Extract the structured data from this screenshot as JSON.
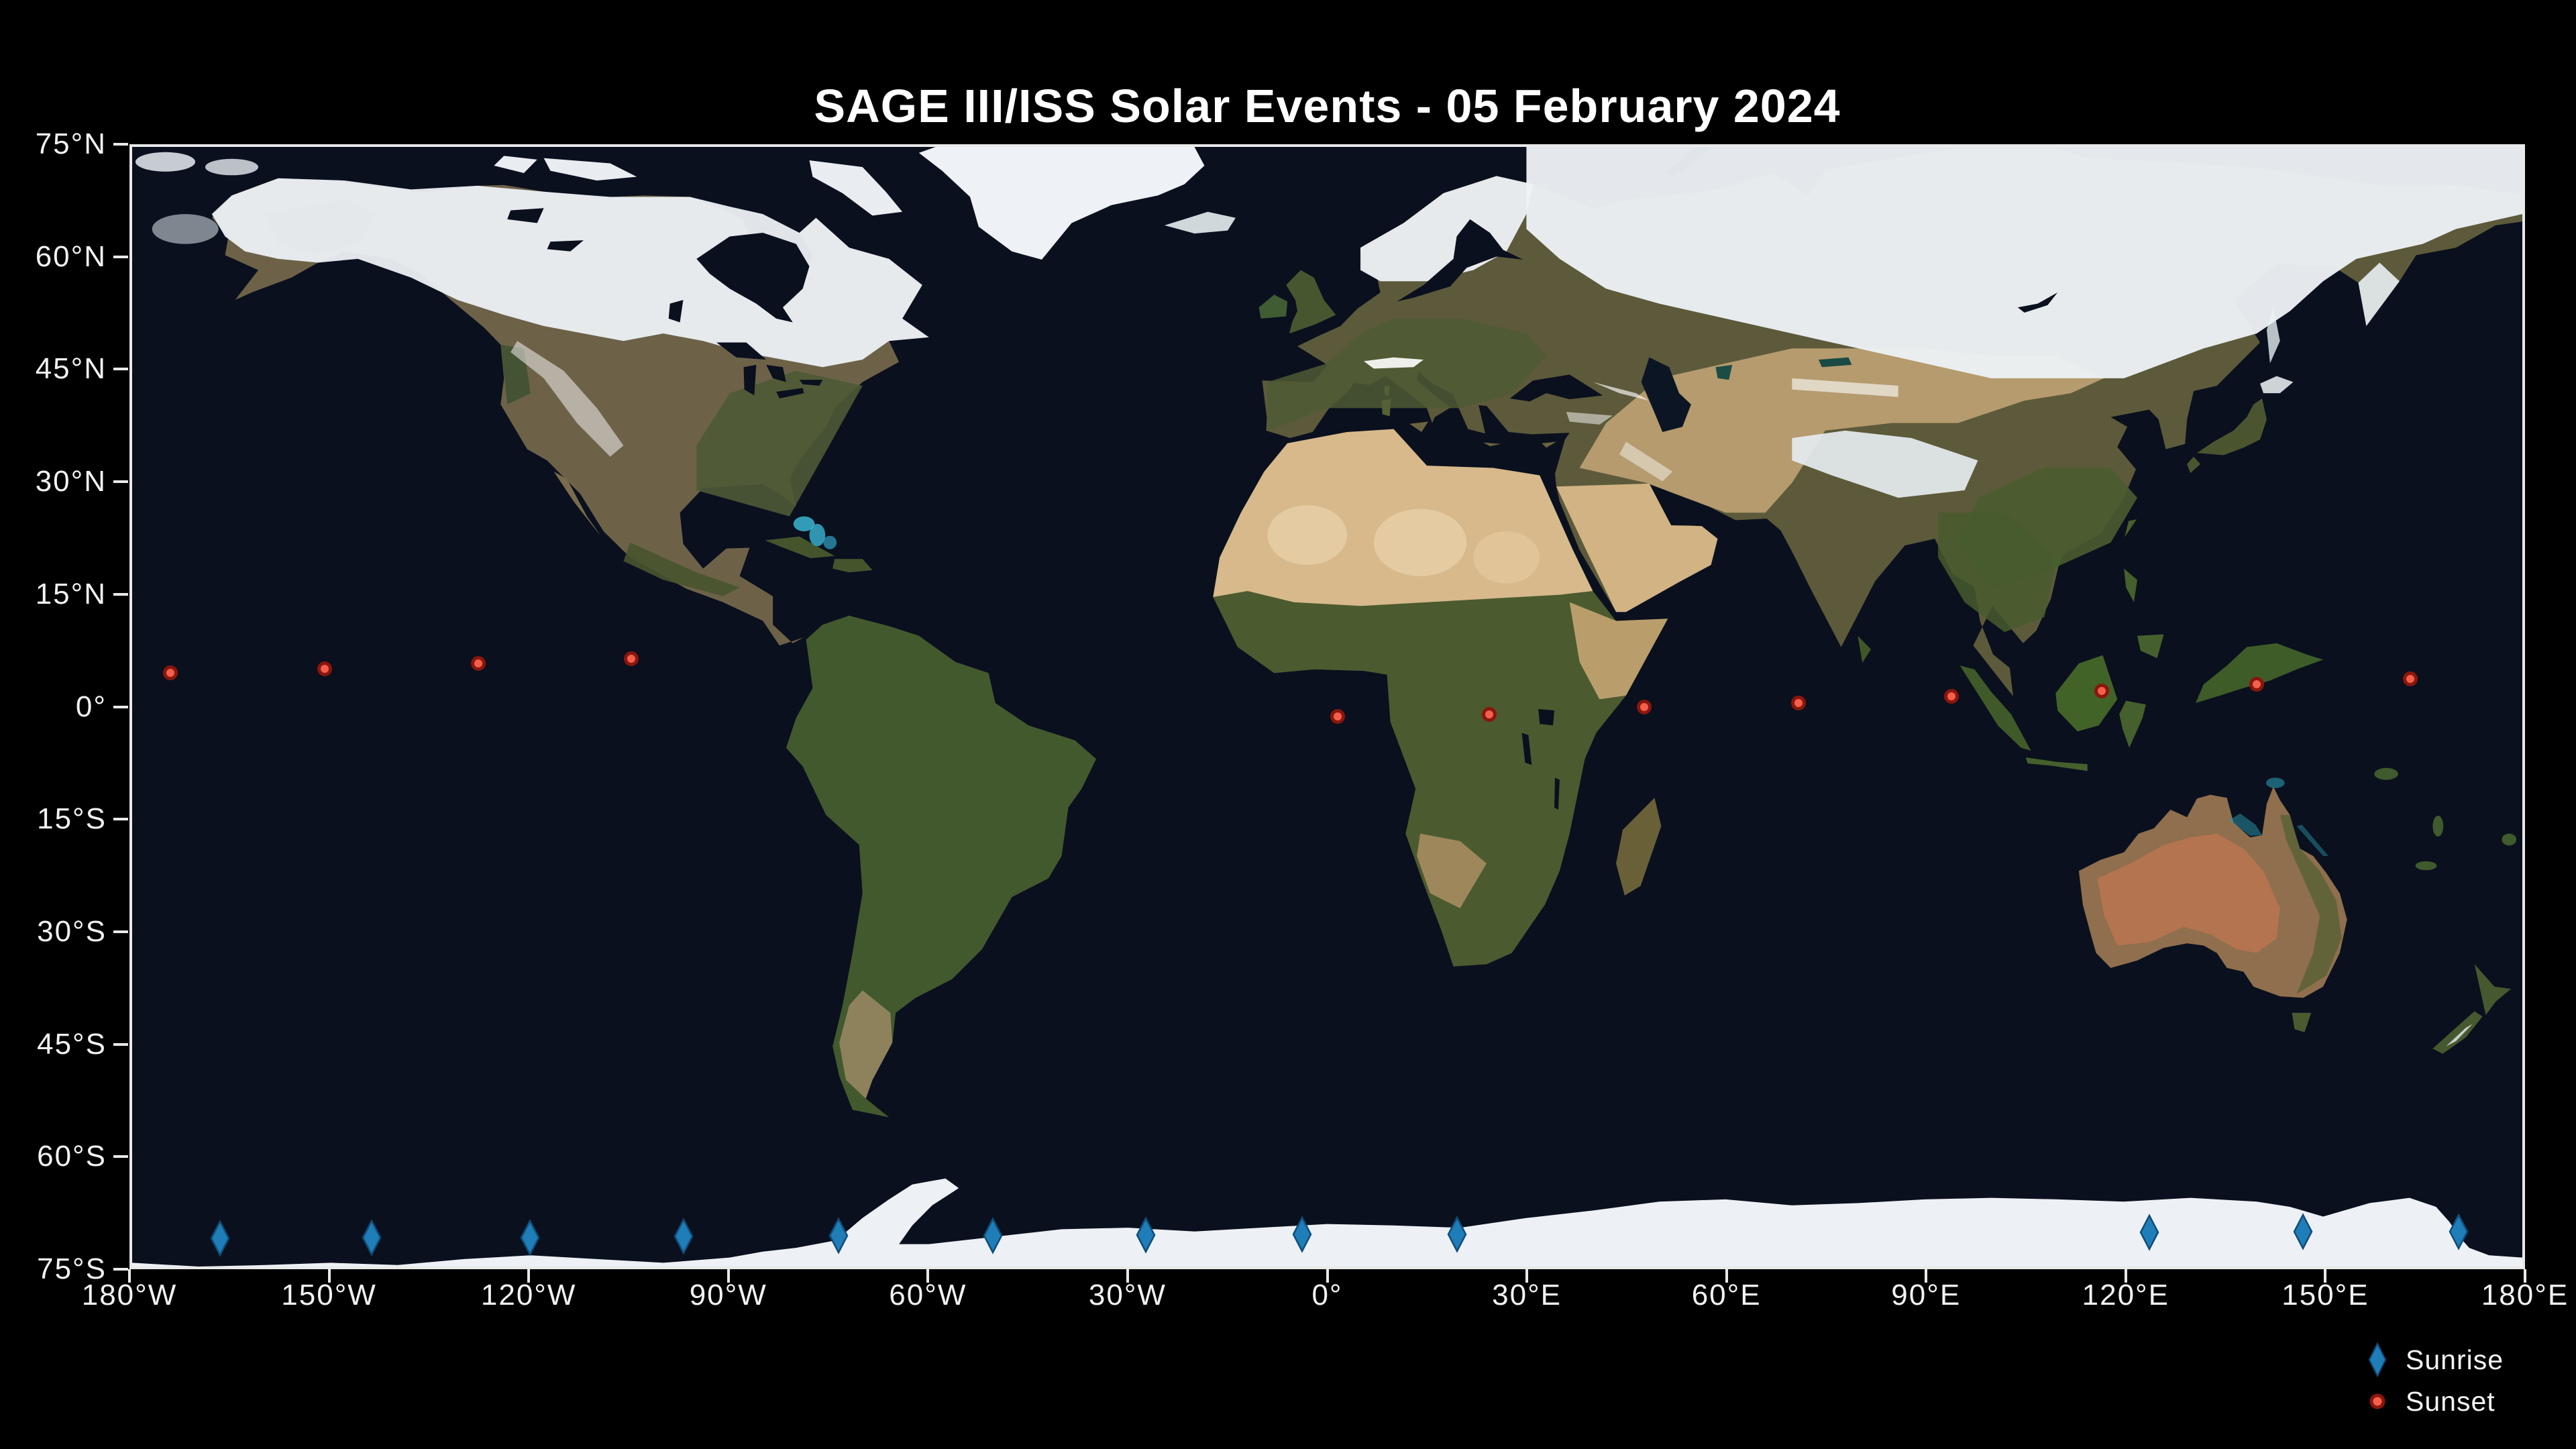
{
  "title": "SAGE III/ISS Solar Events - 05 February 2024",
  "colors": {
    "background": "#000000",
    "ocean": "#0a101e",
    "spine": "#e9e9e9",
    "tick": "#e9e9e9",
    "axis_label": "#f2f2f2",
    "sunrise_fill": "#1f7db8",
    "sunrise_edge": "#0f4d79",
    "sunset_fill": "#f2604c",
    "sunset_edge": "#8a160c"
  },
  "axes": {
    "x_ticks": [
      {
        "label": "180°W",
        "lon": -180
      },
      {
        "label": "150°W",
        "lon": -150
      },
      {
        "label": "120°W",
        "lon": -120
      },
      {
        "label": "90°W",
        "lon": -90
      },
      {
        "label": "60°W",
        "lon": -60
      },
      {
        "label": "30°W",
        "lon": -30
      },
      {
        "label": "0°",
        "lon": 0
      },
      {
        "label": "30°E",
        "lon": 30
      },
      {
        "label": "60°E",
        "lon": 60
      },
      {
        "label": "90°E",
        "lon": 90
      },
      {
        "label": "120°E",
        "lon": 120
      },
      {
        "label": "150°E",
        "lon": 150
      },
      {
        "label": "180°E",
        "lon": 180
      }
    ],
    "y_ticks": [
      {
        "label": "75°N",
        "lat": 75
      },
      {
        "label": "60°N",
        "lat": 60
      },
      {
        "label": "45°N",
        "lat": 45
      },
      {
        "label": "30°N",
        "lat": 30
      },
      {
        "label": "15°N",
        "lat": 15
      },
      {
        "label": "0°",
        "lat": 0
      },
      {
        "label": "15°S",
        "lat": -15
      },
      {
        "label": "30°S",
        "lat": -30
      },
      {
        "label": "45°S",
        "lat": -45
      },
      {
        "label": "60°S",
        "lat": -60
      },
      {
        "label": "75°S",
        "lat": -75
      }
    ]
  },
  "legend": {
    "items": [
      {
        "label": "Sunrise",
        "marker": "diamond"
      },
      {
        "label": "Sunset",
        "marker": "dot"
      }
    ]
  },
  "chart_data": {
    "type": "scatter",
    "title": "SAGE III/ISS Solar Events - 05 February 2024",
    "projection": "equirectangular world map (Blue Marble style)",
    "xlabel": "longitude",
    "ylabel": "latitude",
    "xlim": [
      -180,
      180
    ],
    "ylim": [
      -75,
      75
    ],
    "grid": false,
    "legend_position": "lower right, outside plot",
    "series": [
      {
        "name": "Sunrise",
        "marker": "diamond",
        "color": "#1f7db8",
        "points": [
          {
            "lon": -166.8,
            "lat": -71.2
          },
          {
            "lon": -143.9,
            "lat": -71.1
          },
          {
            "lon": -120.1,
            "lat": -71.1
          },
          {
            "lon": -96.9,
            "lat": -71.0
          },
          {
            "lon": -73.6,
            "lat": -70.9
          },
          {
            "lon": -50.4,
            "lat": -70.9
          },
          {
            "lon": -27.3,
            "lat": -70.8
          },
          {
            "lon": -3.8,
            "lat": -70.7
          },
          {
            "lon": 19.6,
            "lat": -70.7
          },
          {
            "lon": 123.8,
            "lat": -70.4
          },
          {
            "lon": 147.0,
            "lat": -70.3
          },
          {
            "lon": 170.4,
            "lat": -70.3
          }
        ]
      },
      {
        "name": "Sunset",
        "marker": "dot",
        "color": "#f2604c",
        "points": [
          {
            "lon": -174.2,
            "lat": 4.5
          },
          {
            "lon": -151.0,
            "lat": 5.1
          },
          {
            "lon": -127.9,
            "lat": 5.8
          },
          {
            "lon": -104.8,
            "lat": 6.4
          },
          {
            "lon": 1.6,
            "lat": -1.3
          },
          {
            "lon": 24.4,
            "lat": -1.0
          },
          {
            "lon": 47.7,
            "lat": 0.0
          },
          {
            "lon": 71.0,
            "lat": 0.5
          },
          {
            "lon": 94.0,
            "lat": 1.4
          },
          {
            "lon": 116.6,
            "lat": 2.1
          },
          {
            "lon": 140.0,
            "lat": 3.0
          },
          {
            "lon": 163.1,
            "lat": 3.7
          }
        ]
      }
    ]
  }
}
